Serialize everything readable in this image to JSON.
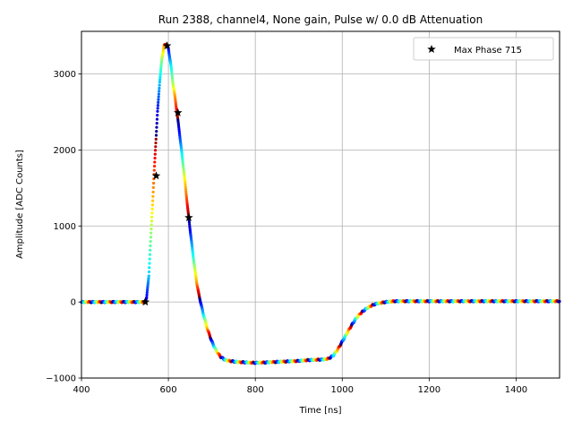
{
  "chart_data": {
    "type": "scatter",
    "title": "Run 2388, channel4, None gain, Pulse w/ 0.0 dB Attenuation",
    "xlabel": "Time [ns]",
    "ylabel": "Amplitude [ADC Counts]",
    "xlim": [
      400,
      1500
    ],
    "ylim": [
      -1000,
      3560
    ],
    "x_ticks": [
      400,
      600,
      800,
      1000,
      1200,
      1400
    ],
    "y_ticks": [
      -1000,
      0,
      1000,
      2000,
      3000
    ],
    "x_tick_labels": [
      "400",
      "600",
      "800",
      "1000",
      "1200",
      "1400"
    ],
    "y_tick_labels": [
      "−1000",
      "0",
      "1000",
      "2000",
      "3000"
    ],
    "grid": true,
    "legend_position": "top-right",
    "waveform_colormap": "jet",
    "waveform_shape": {
      "x": [
        400,
        450,
        500,
        530,
        545,
        550,
        555,
        560,
        565,
        570,
        575,
        580,
        585,
        590,
        595,
        600,
        605,
        610,
        615,
        620,
        625,
        630,
        635,
        640,
        645,
        650,
        655,
        660,
        665,
        670,
        680,
        690,
        700,
        710,
        720,
        730,
        740,
        760,
        780,
        800,
        820,
        840,
        860,
        880,
        900,
        920,
        940,
        960,
        970,
        980,
        990,
        1000,
        1010,
        1020,
        1030,
        1040,
        1050,
        1060,
        1070,
        1080,
        1090,
        1100,
        1120,
        1140,
        1160,
        1180,
        1200,
        1250,
        1300,
        1350,
        1400,
        1450,
        1500
      ],
      "y": [
        0,
        0,
        0,
        0,
        0,
        60,
        350,
        900,
        1450,
        2000,
        2500,
        2900,
        3200,
        3370,
        3400,
        3330,
        3150,
        2900,
        2700,
        2480,
        2250,
        2000,
        1750,
        1480,
        1200,
        950,
        700,
        470,
        260,
        100,
        -150,
        -360,
        -520,
        -640,
        -720,
        -760,
        -775,
        -790,
        -795,
        -800,
        -795,
        -790,
        -785,
        -780,
        -775,
        -765,
        -760,
        -755,
        -740,
        -700,
        -620,
        -520,
        -420,
        -320,
        -230,
        -160,
        -110,
        -70,
        -40,
        -20,
        -10,
        0,
        10,
        10,
        10,
        10,
        10,
        10,
        10,
        10,
        10,
        10,
        10
      ]
    },
    "series": [
      {
        "name": "Max Phase 715",
        "marker": "star",
        "color": "#000000",
        "x": [
          547,
          572,
          597,
          622,
          647
        ],
        "y": [
          0,
          1660,
          3370,
          2490,
          1110
        ]
      }
    ]
  }
}
